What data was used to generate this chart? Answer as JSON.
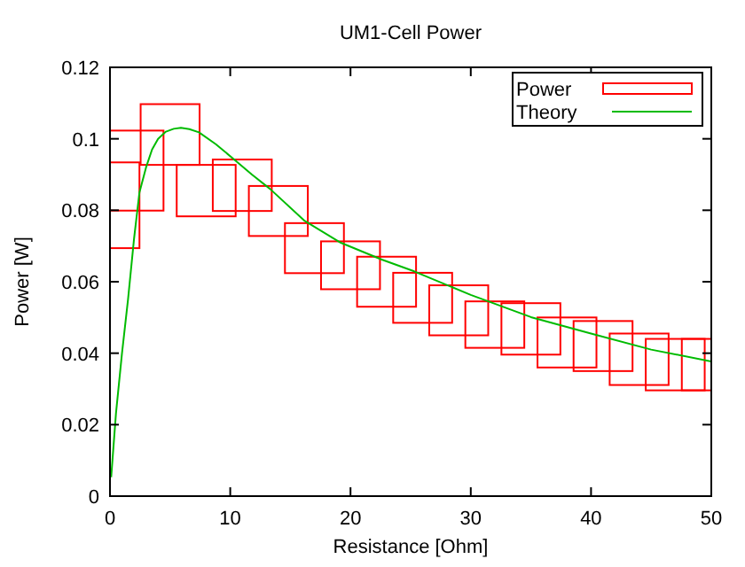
{
  "chart_data": {
    "type": "bar",
    "title": "UM1-Cell Power",
    "xlabel": "Resistance [Ohm]",
    "ylabel": "Power [W]",
    "xlim": [
      0,
      50
    ],
    "ylim": [
      0,
      0.12
    ],
    "xticks": [
      0,
      10,
      20,
      30,
      40,
      50
    ],
    "yticks": [
      0,
      0.02,
      0.04,
      0.06,
      0.08,
      {
        "value": 0.1,
        "label": "0.1"
      },
      0.12
    ],
    "legend": "top right",
    "series": [
      {
        "name": "Power",
        "color": "#ff0000",
        "x": [
          0,
          2,
          5,
          8,
          11,
          14,
          17,
          20,
          23,
          26,
          29,
          32,
          35,
          38,
          41,
          44,
          47,
          50
        ],
        "base": [
          0.0694,
          0.0799,
          0.0927,
          0.0783,
          0.0798,
          0.0728,
          0.0624,
          0.0579,
          0.053,
          0.0485,
          0.045,
          0.0415,
          0.0396,
          0.036,
          0.035,
          0.0311,
          0.0296,
          0.0296
        ],
        "values": [
          0.024,
          0.0224,
          0.017,
          0.0144,
          0.0144,
          0.014,
          0.014,
          0.0134,
          0.014,
          0.014,
          0.014,
          0.013,
          0.0144,
          0.014,
          0.014,
          0.0144,
          0.0144,
          0.0144
        ]
      },
      {
        "name": "Theory",
        "type": "line",
        "color": "#00bb00",
        "x": [
          0.1,
          0.5,
          1,
          1.5,
          2,
          2.45,
          3,
          3.5,
          4,
          4.65,
          5.3,
          5.9,
          6.6,
          7.4,
          8.8,
          10.3,
          11.8,
          13.3,
          16.2,
          19.2,
          22.6,
          25.3,
          30,
          35,
          40,
          45,
          50
        ],
        "values": [
          0.0053,
          0.0232,
          0.04,
          0.055,
          0.072,
          0.085,
          0.092,
          0.097,
          0.1,
          0.102,
          0.1028,
          0.1031,
          0.1027,
          0.1018,
          0.0985,
          0.0943,
          0.09,
          0.086,
          0.077,
          0.0709,
          0.0662,
          0.0629,
          0.0563,
          0.0501,
          0.0455,
          0.041,
          0.0377
        ]
      }
    ]
  }
}
